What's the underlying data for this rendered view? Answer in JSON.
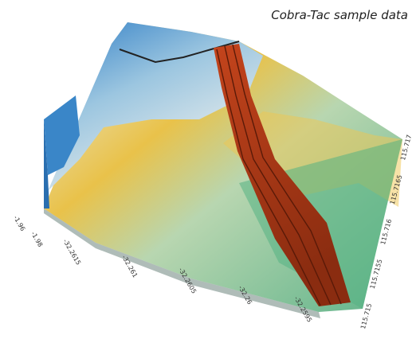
{
  "title": "Cobra-Tac sample data",
  "axes": {
    "depth_labels": [
      "-1.96",
      "-1.98"
    ],
    "latitude_labels": [
      "-32.2615",
      "-32.261",
      "-32.2605",
      "-32.26",
      "-32.2595"
    ],
    "longitude_labels": [
      "115.715",
      "115.7155",
      "115.716",
      "115.7165",
      "115.717"
    ]
  }
}
